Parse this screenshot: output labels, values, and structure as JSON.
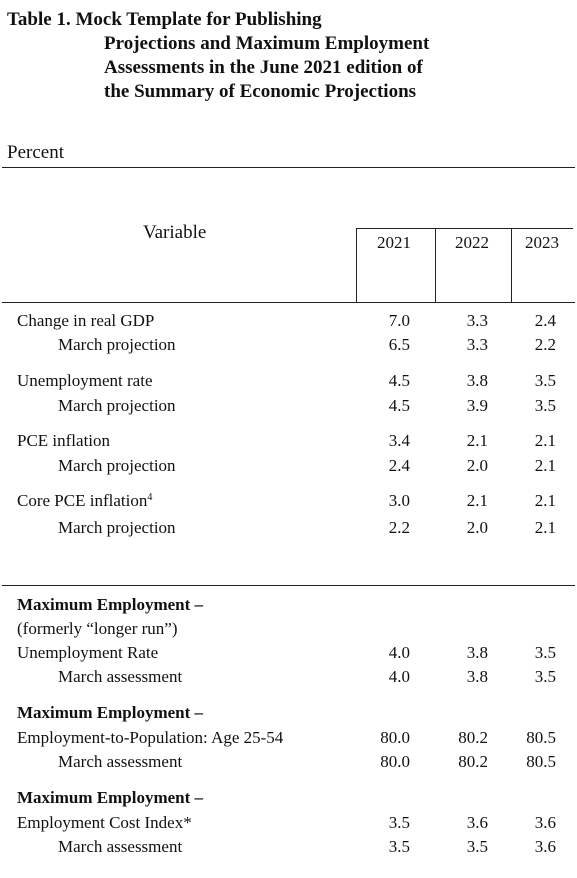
{
  "title": {
    "line1": "Table 1. Mock Template for Publishing",
    "line2": "Projections and Maximum Employment",
    "line3": "Assessments in the June 2021 edition of",
    "line4": "the Summary of Economic Projections"
  },
  "unit": "Percent",
  "header": {
    "variable": "Variable",
    "years": [
      "2021",
      "2022",
      "2023"
    ]
  },
  "projections": [
    {
      "label": "Change in real GDP",
      "values": [
        "7.0",
        "3.3",
        "2.4"
      ]
    },
    {
      "label": "March projection",
      "values": [
        "6.5",
        "3.3",
        "2.2"
      ]
    },
    {
      "label": "Unemployment rate",
      "values": [
        "4.5",
        "3.8",
        "3.5"
      ]
    },
    {
      "label": "March projection",
      "values": [
        "4.5",
        "3.9",
        "3.5"
      ]
    },
    {
      "label": "PCE inflation",
      "values": [
        "3.4",
        "2.1",
        "2.1"
      ]
    },
    {
      "label": "March projection",
      "values": [
        "2.4",
        "2.0",
        "2.1"
      ]
    },
    {
      "label": "Core PCE inflation",
      "footnote": "4",
      "values": [
        "3.0",
        "2.1",
        "2.1"
      ]
    },
    {
      "label": "March projection",
      "values": [
        "2.2",
        "2.0",
        "2.1"
      ]
    }
  ],
  "max_employment": {
    "heading": "Maximum Employment –",
    "formerly": "(formerly “longer run”)",
    "rows": [
      {
        "label": "Unemployment Rate",
        "values": [
          "4.0",
          "3.8",
          "3.5"
        ]
      },
      {
        "label": "March assessment",
        "values": [
          "4.0",
          "3.8",
          "3.5"
        ]
      },
      {
        "label": "Employment-to-Population: Age 25-54",
        "values": [
          "80.0",
          "80.2",
          "80.5"
        ]
      },
      {
        "label": "March assessment",
        "values": [
          "80.0",
          "80.2",
          "80.5"
        ]
      },
      {
        "label": "Employment Cost Index*",
        "values": [
          "3.5",
          "3.6",
          "3.6"
        ]
      },
      {
        "label": "March assessment",
        "values": [
          "3.5",
          "3.5",
          "3.6"
        ]
      }
    ]
  }
}
